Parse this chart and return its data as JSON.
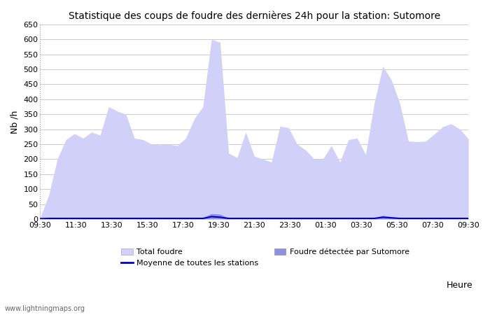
{
  "title": "Statistique des coups de foudre des dernières 24h pour la station: Sutomore",
  "ylabel": "Nb /h",
  "xlabel": "Heure",
  "watermark": "www.lightningmaps.org",
  "ylim": [
    0,
    650
  ],
  "yticks": [
    0,
    50,
    100,
    150,
    200,
    250,
    300,
    350,
    400,
    450,
    500,
    550,
    600,
    650
  ],
  "xtick_labels": [
    "09:30",
    "11:30",
    "13:30",
    "15:30",
    "17:30",
    "19:30",
    "21:30",
    "23:30",
    "01:30",
    "03:30",
    "05:30",
    "07:30",
    "09:30"
  ],
  "legend_total": "Total foudre",
  "legend_station": "Foudre détectée par Sutomore",
  "legend_moyenne": "Moyenne de toutes les stations",
  "color_total": "#d0d0f8",
  "color_station": "#9090e0",
  "color_moyenne": "#0000cc",
  "bg_color": "#ffffff",
  "grid_color": "#cccccc",
  "title_color": "#000000",
  "total_foudre": [
    5,
    80,
    200,
    265,
    285,
    270,
    290,
    280,
    375,
    360,
    350,
    270,
    265,
    250,
    248,
    250,
    245,
    270,
    335,
    375,
    600,
    590,
    220,
    205,
    290,
    210,
    200,
    190,
    310,
    305,
    250,
    230,
    200,
    200,
    245,
    190,
    265,
    270,
    215,
    385,
    510,
    465,
    385,
    260,
    258,
    260,
    283,
    308,
    318,
    300,
    268
  ],
  "station_foudre": [
    2,
    3,
    3,
    4,
    3,
    3,
    4,
    4,
    3,
    3,
    3,
    3,
    3,
    3,
    3,
    3,
    3,
    3,
    4,
    5,
    18,
    16,
    3,
    3,
    3,
    3,
    3,
    3,
    3,
    3,
    3,
    3,
    3,
    3,
    3,
    3,
    3,
    3,
    3,
    4,
    12,
    8,
    4,
    3,
    3,
    3,
    3,
    3,
    3,
    3,
    3
  ],
  "moyenne": [
    1,
    2,
    2,
    2,
    2,
    2,
    2,
    2,
    2,
    2,
    2,
    2,
    2,
    2,
    2,
    2,
    2,
    2,
    2,
    2,
    8,
    6,
    2,
    2,
    2,
    2,
    2,
    2,
    2,
    2,
    2,
    2,
    2,
    2,
    2,
    2,
    2,
    2,
    2,
    2,
    6,
    4,
    2,
    2,
    2,
    2,
    2,
    2,
    2,
    2,
    2
  ]
}
